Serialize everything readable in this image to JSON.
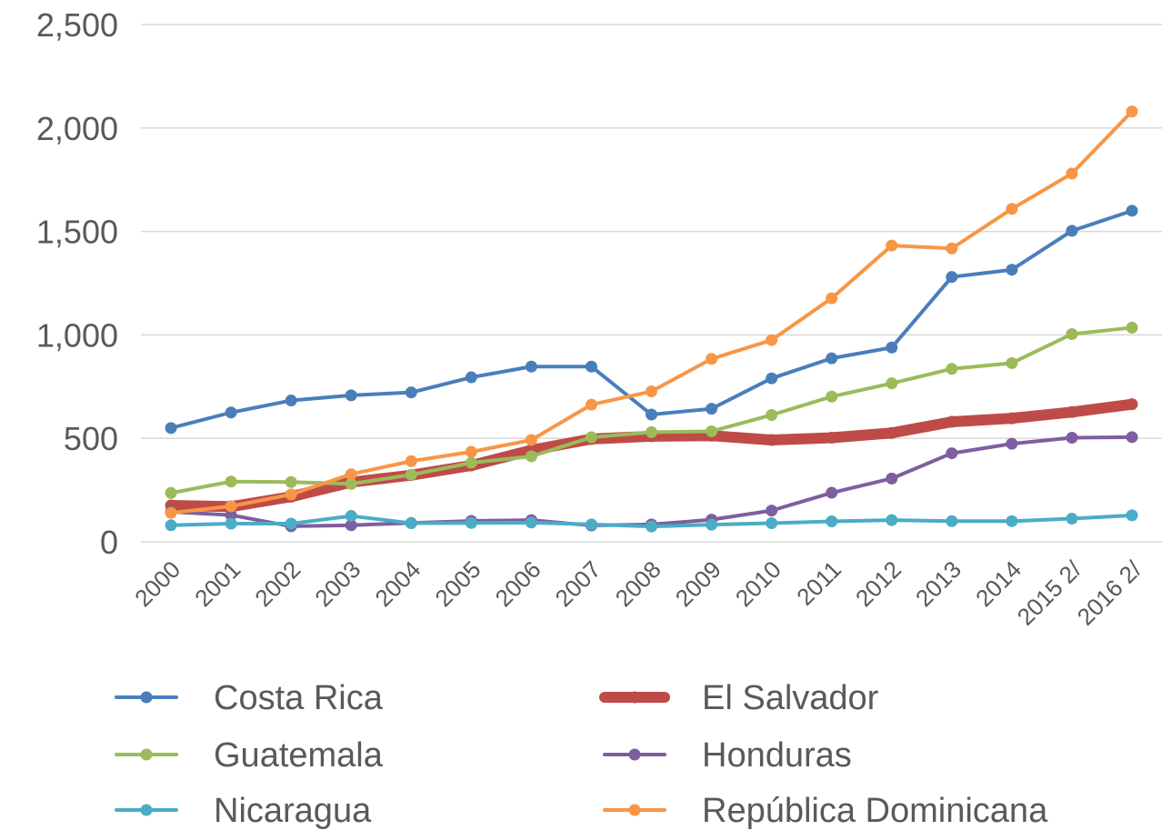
{
  "chart_data": {
    "type": "line",
    "title": "",
    "xlabel": "",
    "ylabel": "",
    "ylim": [
      0,
      2500
    ],
    "y_ticks": [
      "0",
      "500",
      "1,000",
      "1,500",
      "2,000",
      "2,500"
    ],
    "categories": [
      "2000",
      "2001",
      "2002",
      "2003",
      "2004",
      "2005",
      "2006",
      "2007",
      "2008",
      "2009",
      "2010",
      "2011",
      "2012",
      "2013",
      "2014",
      "2015 2/",
      "2016 2/"
    ],
    "grid": true,
    "legend_position": "bottom",
    "series": [
      {
        "name": "Costa Rica",
        "color": "#4a7ebb",
        "values": [
          550,
          625,
          683,
          708,
          722,
          795,
          847,
          847,
          615,
          643,
          790,
          887,
          939,
          1280,
          1315,
          1503,
          1600
        ]
      },
      {
        "name": "El Salvador",
        "color": "#be4b48",
        "values": [
          176,
          170,
          218,
          288,
          322,
          369,
          443,
          497,
          510,
          513,
          492,
          503,
          526,
          580,
          597,
          627,
          665
        ]
      },
      {
        "name": "Guatemala",
        "color": "#9bbb59",
        "values": [
          236,
          291,
          289,
          280,
          324,
          382,
          413,
          505,
          530,
          534,
          613,
          702,
          766,
          836,
          864,
          1004,
          1035
        ]
      },
      {
        "name": "Honduras",
        "color": "#7d5fa0",
        "values": [
          145,
          129,
          75,
          80,
          91,
          101,
          105,
          79,
          84,
          107,
          151,
          237,
          306,
          428,
          474,
          503,
          506
        ]
      },
      {
        "name": "Nicaragua",
        "color": "#4bacc6",
        "values": [
          80,
          88,
          88,
          125,
          90,
          91,
          93,
          84,
          74,
          83,
          90,
          99,
          105,
          100,
          100,
          112,
          128
        ]
      },
      {
        "name": "República Dominicana",
        "color": "#f79646",
        "values": [
          140,
          172,
          229,
          327,
          390,
          435,
          492,
          663,
          727,
          884,
          975,
          1177,
          1432,
          1418,
          1609,
          1780,
          2080
        ]
      }
    ]
  }
}
